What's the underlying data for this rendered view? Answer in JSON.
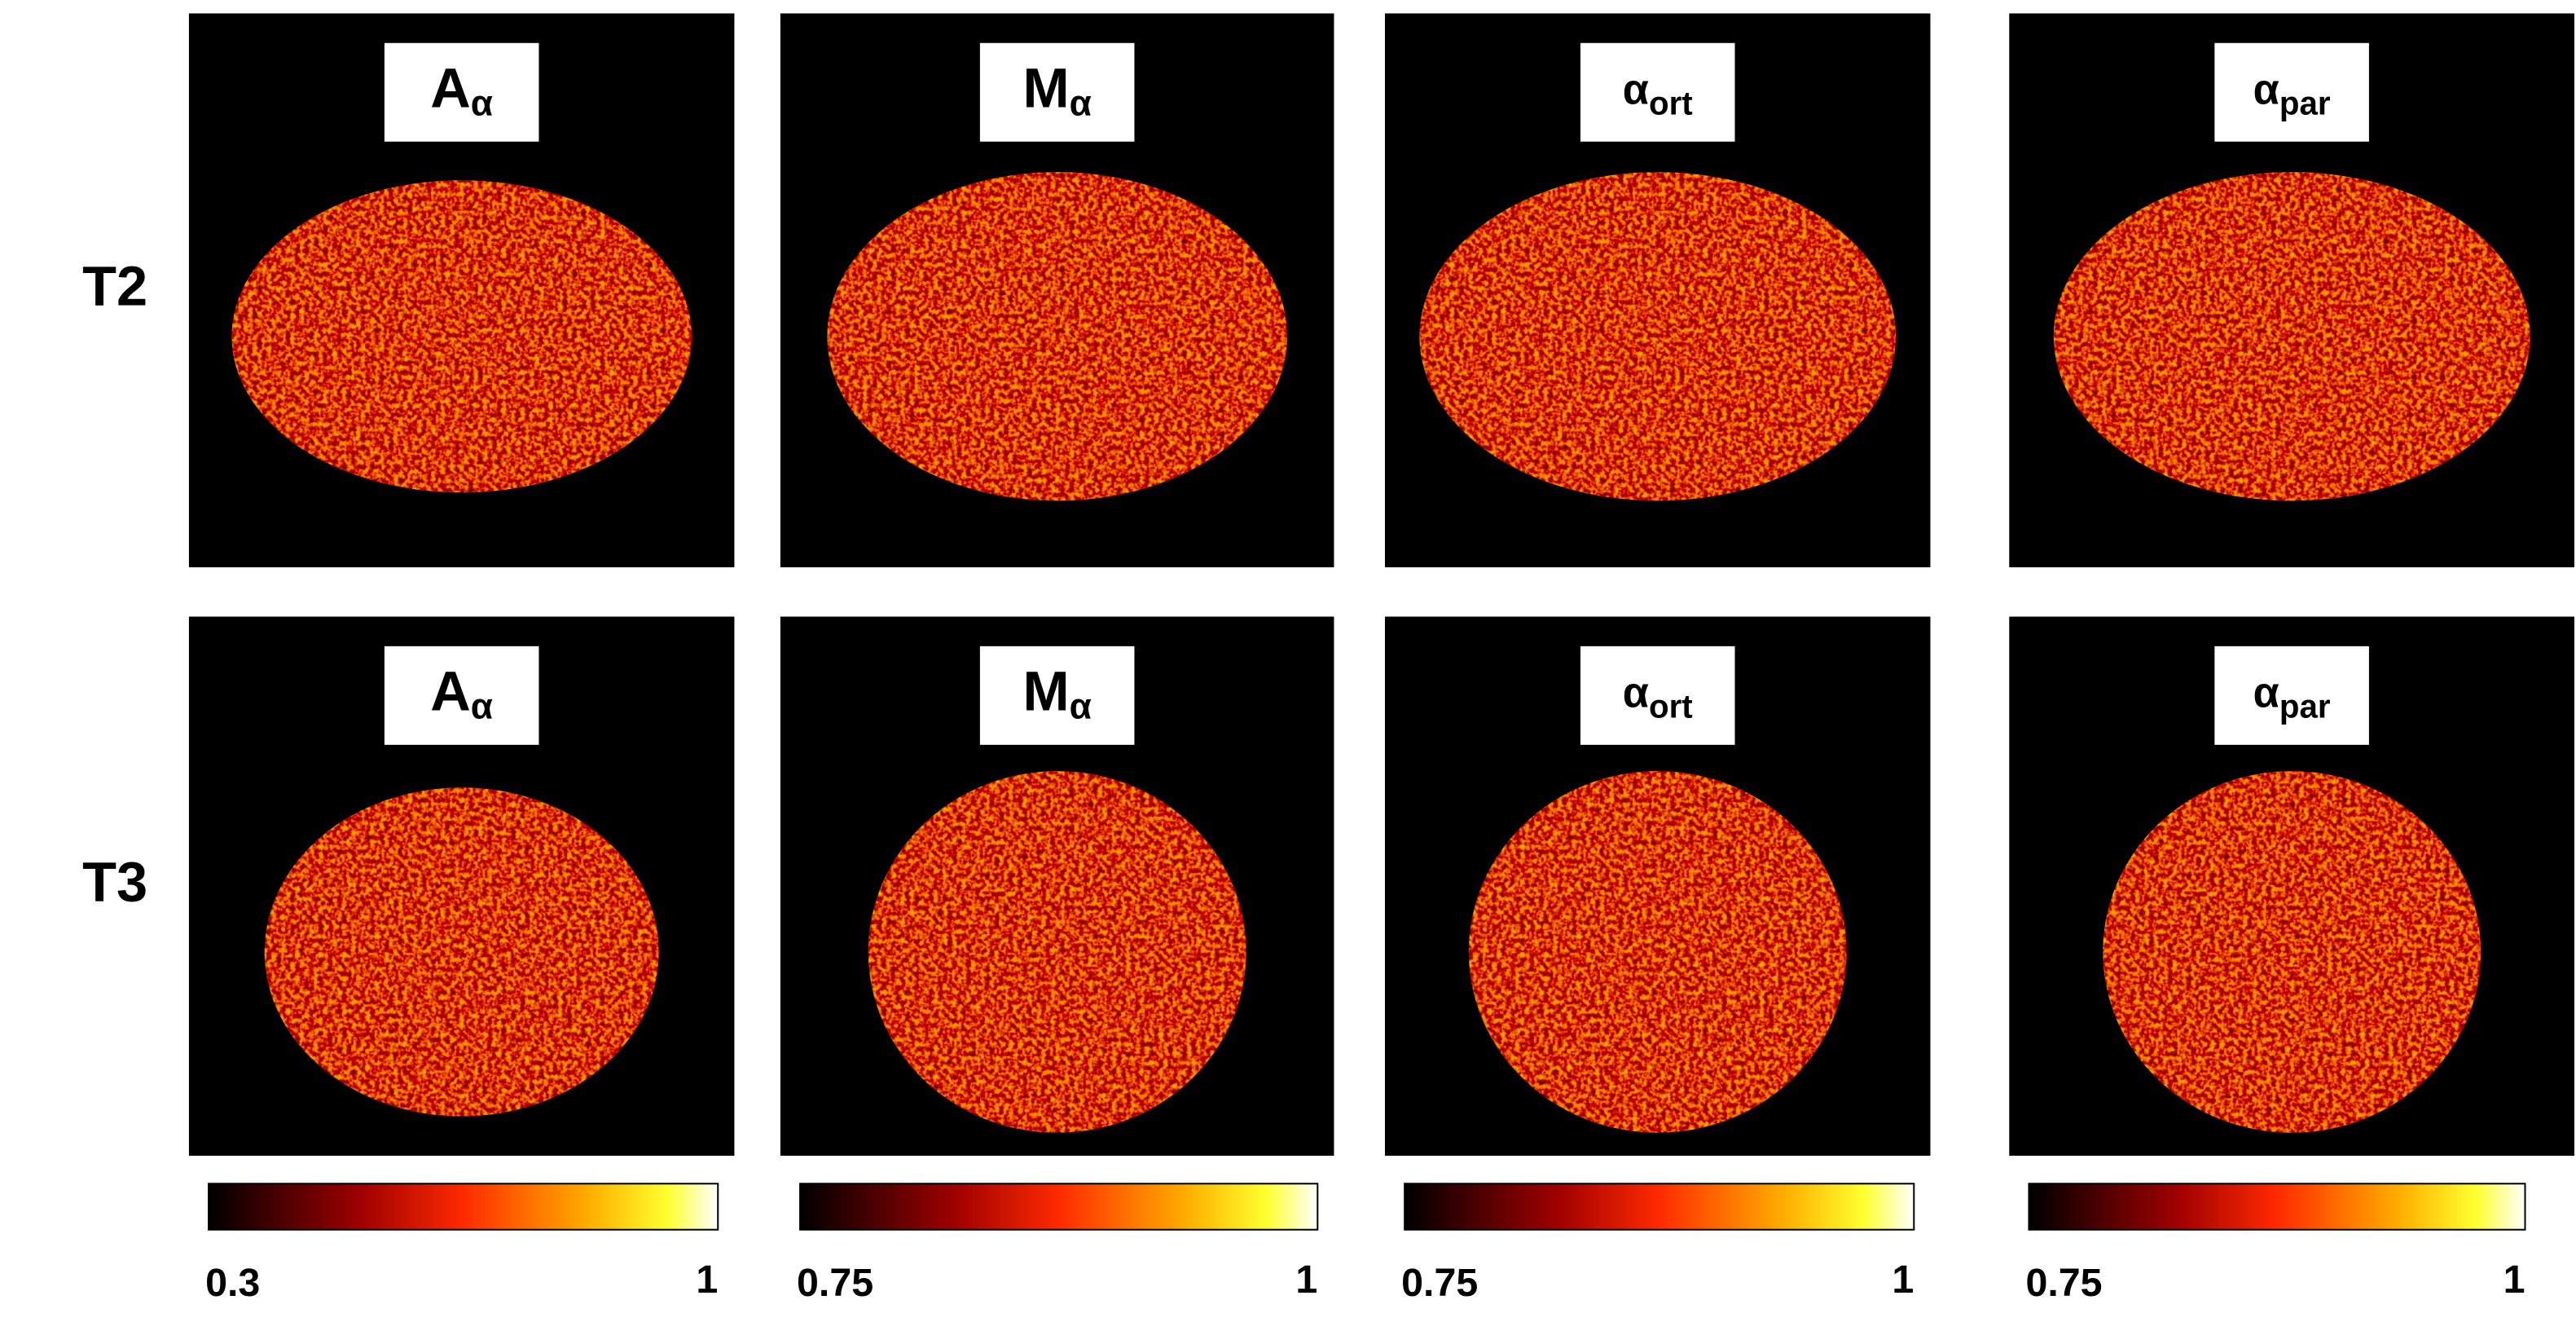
{
  "rows": [
    {
      "label": "T2",
      "panels": [
        {
          "main": "A",
          "sub": "α"
        },
        {
          "main": "M",
          "sub": "α"
        },
        {
          "main": "α",
          "sub": "ort"
        },
        {
          "main": "α",
          "sub": "par"
        }
      ]
    },
    {
      "label": "T3",
      "panels": [
        {
          "main": "A",
          "sub": "α"
        },
        {
          "main": "M",
          "sub": "α"
        },
        {
          "main": "α",
          "sub": "ort"
        },
        {
          "main": "α",
          "sub": "par"
        }
      ]
    }
  ],
  "colorbars": [
    {
      "min": 0.3,
      "max": 1
    },
    {
      "min": 0.75,
      "max": 1
    },
    {
      "min": 0.75,
      "max": 1
    },
    {
      "min": 0.75,
      "max": 1
    }
  ]
}
